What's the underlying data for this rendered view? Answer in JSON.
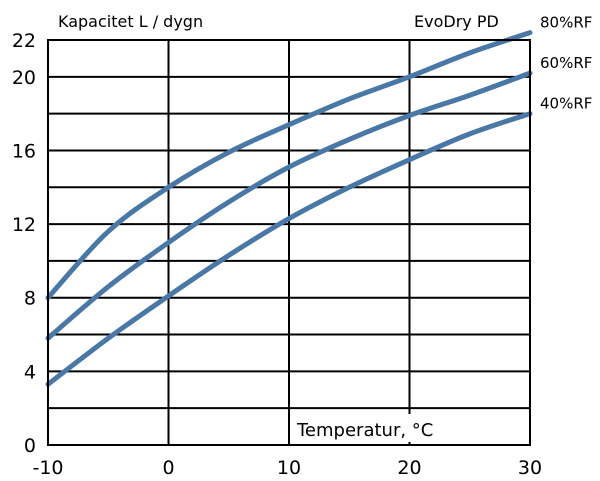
{
  "chart_data": {
    "type": "line",
    "title": "EvoDry PD",
    "ylabel": "Kapacitet L / dygn",
    "xlabel": "Temperatur, °C",
    "xlim": [
      -10,
      30
    ],
    "ylim": [
      0,
      22
    ],
    "x_ticks": [
      "-10",
      "0",
      "10",
      "20",
      "30"
    ],
    "y_ticks": [
      "0",
      "4",
      "8",
      "12",
      "16",
      "20",
      "22"
    ],
    "grid": true,
    "line_color": "#4a78a6",
    "series": [
      {
        "name": "80%RF",
        "x": [
          -10,
          -5,
          0,
          5,
          10,
          15,
          20,
          25,
          30
        ],
        "values": [
          8.0,
          11.6,
          14.0,
          15.9,
          17.4,
          18.8,
          20.0,
          21.3,
          22.4
        ]
      },
      {
        "name": "60%RF",
        "x": [
          -10,
          -5,
          0,
          5,
          10,
          15,
          20,
          25,
          30
        ],
        "values": [
          5.8,
          8.6,
          11.0,
          13.2,
          15.1,
          16.6,
          17.9,
          19.0,
          20.2
        ]
      },
      {
        "name": "40%RF",
        "x": [
          -10,
          -5,
          0,
          5,
          10,
          15,
          20,
          25,
          30
        ],
        "values": [
          3.3,
          5.8,
          8.1,
          10.3,
          12.3,
          14.0,
          15.5,
          16.9,
          18.0
        ]
      }
    ]
  }
}
